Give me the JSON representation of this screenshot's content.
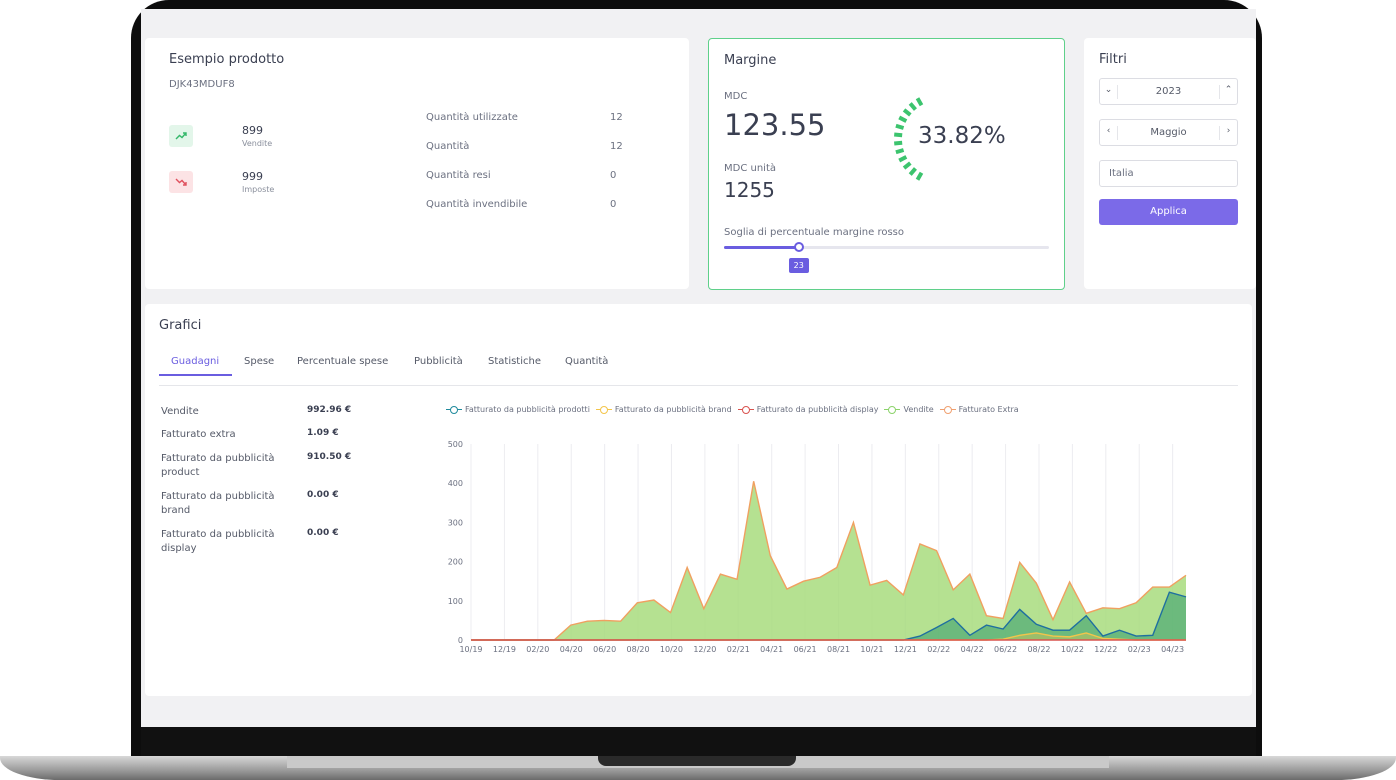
{
  "product": {
    "title": "Esempio prodotto",
    "sku": "DJK43MDUF8",
    "kpis": [
      {
        "value": "899",
        "label": "Vendite",
        "icon": "trend-up-icon"
      },
      {
        "value": "999",
        "label": "Imposte",
        "icon": "trend-down-icon"
      }
    ],
    "quantities": [
      {
        "label": "Quantità utilizzate",
        "value": "12"
      },
      {
        "label": "Quantità",
        "value": "12"
      },
      {
        "label": "Quantità resi",
        "value": "0"
      },
      {
        "label": "Quantità invendibile",
        "value": "0"
      }
    ]
  },
  "margin": {
    "title": "Margine",
    "mdc_label": "MDC",
    "mdc_value": "123.55",
    "mdc_unit_label": "MDC unità",
    "mdc_unit_value": "1255",
    "percent": "33.82%",
    "percent_value": 33.82,
    "threshold_label": "Soglia di percentuale margine rosso",
    "threshold_value": "23",
    "threshold_fraction": 0.23,
    "accent": "#6a5de0",
    "gauge_color": "#3cc46e"
  },
  "filters": {
    "title": "Filtri",
    "year": "2023",
    "month": "Maggio",
    "country_placeholder": "Italia",
    "apply_label": "Applica",
    "apply_color": "#7b6ae8"
  },
  "charts": {
    "title": "Grafici",
    "tabs": [
      "Guadagni",
      "Spese",
      "Percentuale spese",
      "Pubblicità",
      "Statistiche",
      "Quantità"
    ],
    "active_tab": "Guadagni",
    "summary": [
      {
        "label": "Vendite",
        "value": "992.96 €"
      },
      {
        "label": "Fatturato extra",
        "value": "1.09 €"
      },
      {
        "label": "Fatturato da pubblicità product",
        "value": "910.50 €"
      },
      {
        "label": "Fatturato da pubblicità brand",
        "value": "0.00 €"
      },
      {
        "label": "Fatturato da pubblicità display",
        "value": "0.00 €"
      }
    ]
  },
  "chart_data": {
    "type": "area",
    "legend": [
      "Fatturato da pubblicità prodotti",
      "Fatturato da pubblicità brand",
      "Fatturato da pubblicità display",
      "Vendite",
      "Fatturato Extra"
    ],
    "legend_colors": [
      "#1f8a9c",
      "#f3c54a",
      "#d9534f",
      "#8cd36b",
      "#f0a070"
    ],
    "legend_placement": "top",
    "ylim": [
      0,
      500
    ],
    "yticks": [
      0,
      100,
      200,
      300,
      400,
      500
    ],
    "xticks": [
      "10/19",
      "12/19",
      "02/20",
      "04/20",
      "06/20",
      "08/20",
      "10/20",
      "12/20",
      "02/21",
      "04/21",
      "06/21",
      "08/21",
      "10/21",
      "12/21",
      "02/22",
      "04/22",
      "06/22",
      "08/22",
      "10/22",
      "12/22",
      "02/23",
      "04/23"
    ],
    "grid": true,
    "series": [
      {
        "name": "Vendite",
        "values": [
          0,
          0,
          0,
          0,
          0,
          0,
          38,
          48,
          50,
          48,
          95,
          102,
          70,
          185,
          80,
          168,
          155,
          405,
          215,
          130,
          150,
          160,
          185,
          300,
          140,
          152,
          115,
          245,
          228,
          128,
          168,
          62,
          55,
          198,
          145,
          52,
          148,
          68,
          82,
          80,
          95,
          135,
          135,
          165
        ]
      },
      {
        "name": "Fatturato da pubblicità prodotti",
        "values": [
          0,
          0,
          0,
          0,
          0,
          0,
          0,
          0,
          0,
          0,
          0,
          0,
          0,
          0,
          0,
          0,
          0,
          0,
          0,
          0,
          0,
          0,
          0,
          0,
          0,
          0,
          0,
          10,
          32,
          55,
          12,
          38,
          28,
          78,
          40,
          25,
          25,
          62,
          10,
          25,
          10,
          12,
          122,
          110
        ]
      },
      {
        "name": "Fatturato da pubblicità brand",
        "values": [
          0,
          0,
          0,
          0,
          0,
          0,
          0,
          0,
          0,
          0,
          0,
          0,
          0,
          0,
          0,
          0,
          0,
          0,
          0,
          0,
          0,
          0,
          0,
          0,
          0,
          0,
          0,
          0,
          0,
          0,
          0,
          0,
          2,
          12,
          18,
          10,
          8,
          18,
          4,
          2,
          0,
          0,
          0,
          0
        ]
      },
      {
        "name": "Fatturato da pubblicità display",
        "values": [
          0,
          0,
          0,
          0,
          0,
          0,
          0,
          0,
          0,
          0,
          0,
          0,
          0,
          0,
          0,
          0,
          0,
          0,
          0,
          0,
          0,
          0,
          0,
          0,
          0,
          0,
          0,
          0,
          0,
          0,
          0,
          0,
          0,
          0,
          0,
          0,
          0,
          0,
          0,
          0,
          0,
          0,
          0,
          0
        ]
      }
    ]
  }
}
